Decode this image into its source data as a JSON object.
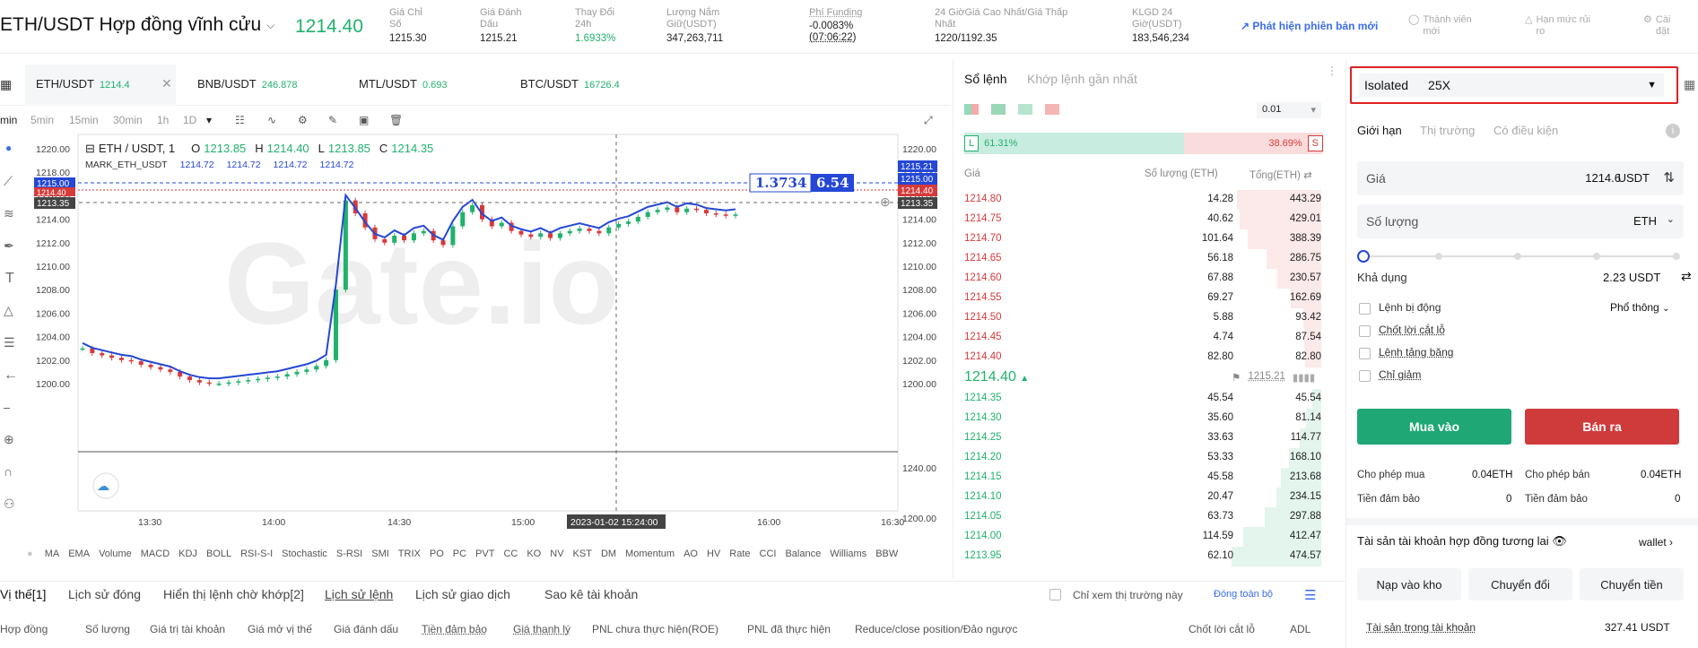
{
  "header": {
    "pair": "ETH/USDT Hợp đồng vĩnh cửu",
    "last_price": "1214.40",
    "stats": [
      {
        "label1": "Giá Chỉ",
        "label2": "Số",
        "value": "1215.30"
      },
      {
        "label1": "Giá Đánh",
        "label2": "Dấu",
        "value": "1215.21"
      },
      {
        "label1": "Thay Đổi",
        "label2": "24h",
        "value": "1.6933%"
      },
      {
        "label1": "Lượng Nắm",
        "label2": "Giữ(USDT)",
        "value": "347,263,711"
      },
      {
        "label1": "Phí Funding",
        "label2": "",
        "value": "-0.0083%",
        "value2": "(07:06:22)"
      },
      {
        "label1": "24 GiờGiá Cao Nhất/Giá Thấp",
        "label2": "Nhất",
        "value": "1220/1192.35"
      },
      {
        "label1": "KLGD 24",
        "label2": "Giờ(USDT)",
        "value": "183,546,234"
      }
    ],
    "new_version": "Phát hiện phiên bản mới",
    "member": [
      "Thành viên",
      "mới"
    ],
    "limit": [
      "Hạn mức rủi",
      "ro"
    ],
    "settings": [
      "Cài",
      "đặt"
    ]
  },
  "market_tabs": [
    {
      "name": "ETH/USDT",
      "price": "1214.4"
    },
    {
      "name": "BNB/USDT",
      "price": "246.878"
    },
    {
      "name": "MTL/USDT",
      "price": "0.693"
    },
    {
      "name": "BTC/USDT",
      "price": "16726.4"
    }
  ],
  "timeframes": [
    "min",
    "5min",
    "15min",
    "30min",
    "1h",
    "1D"
  ],
  "chart": {
    "legend_title": "ETH / USDT, 1",
    "o_label": "O",
    "o": "1213.85",
    "h_label": "H",
    "h": "1214.40",
    "l_label": "L",
    "l": "1213.85",
    "c_label": "C",
    "c": "1214.35",
    "mark_label": "MARK_ETH_USDT",
    "mark_vals": [
      "1214.72",
      "1214.72",
      "1214.72",
      "1214.72"
    ],
    "y_ticks": [
      "1220.00",
      "1218.00",
      "1216.00",
      "1214.00",
      "1212.00",
      "1210.00",
      "1208.00",
      "1206.00",
      "1204.00",
      "1202.00",
      "1200.00"
    ],
    "y_ticks_lower": [
      "1240.00",
      "1200.00"
    ],
    "x_ticks": [
      "13:30",
      "14:00",
      "14:30",
      "15:00",
      "16:00",
      "16:30"
    ],
    "cursor_time": "2023-01-02 15:24:00",
    "tags_right": [
      "1215.21",
      "1215.00",
      "1214.40",
      "1213.35"
    ],
    "tags_left": [
      "1215.00",
      "1214.40",
      "1213.35"
    ],
    "ratio_a": "1.3734",
    "ratio_b": "6.54",
    "watermark": "Gate.io"
  },
  "indicators": [
    "MA",
    "EMA",
    "Volume",
    "MACD",
    "KDJ",
    "BOLL",
    "RSI-S-I",
    "Stochastic",
    "S-RSI",
    "SMI",
    "TRIX",
    "PO",
    "PC",
    "PVT",
    "CC",
    "KO",
    "NV",
    "KST",
    "DM",
    "Momentum",
    "AO",
    "HV",
    "Rate",
    "CCI",
    "Balance",
    "Williams",
    "BBW"
  ],
  "bottom": {
    "tabs": [
      "Vị thế[1]",
      "Lịch sử đóng",
      "Hiển thị lệnh chờ khớp[2]",
      "Lịch sử lệnh",
      "Lịch sử giao dịch",
      "Sao kê tài khoản"
    ],
    "only_market": "Chỉ xem thị trường này",
    "close_all": "Đóng toàn bộ",
    "columns": [
      "Hợp đồng",
      "Số lượng",
      "Giá trị tài khoản",
      "Giá mở vị thế",
      "Giá đánh dấu",
      "Tiền đảm bảo",
      "Giá thanh lý",
      "PNL chưa thực hiện(ROE)",
      "PNL đã thực hiện",
      "Reduce/close position/Đảo ngược",
      "Chốt lời cắt lỗ",
      "ADL"
    ]
  },
  "orderbook": {
    "tab1": "Sổ lệnh",
    "tab2": "Khớp lệnh gần nhất",
    "precision": "0.01",
    "long_label": "L",
    "long_pct": "61.31%",
    "short_pct": "38.69%",
    "short_label": "S",
    "col_price": "Giá",
    "col_qty": "Số lượng (ETH)",
    "col_total": "Tổng(ETH)",
    "asks": [
      {
        "p": "1214.80",
        "q": "14.28",
        "t": "443.29",
        "depth": 0.94
      },
      {
        "p": "1214.75",
        "q": "40.62",
        "t": "429.01",
        "depth": 0.91
      },
      {
        "p": "1214.70",
        "q": "101.64",
        "t": "388.39",
        "depth": 0.82
      },
      {
        "p": "1214.65",
        "q": "56.18",
        "t": "286.75",
        "depth": 0.61
      },
      {
        "p": "1214.60",
        "q": "67.88",
        "t": "230.57",
        "depth": 0.49
      },
      {
        "p": "1214.55",
        "q": "69.27",
        "t": "162.69",
        "depth": 0.34
      },
      {
        "p": "1214.50",
        "q": "5.88",
        "t": "93.42",
        "depth": 0.2
      },
      {
        "p": "1214.45",
        "q": "4.74",
        "t": "87.54",
        "depth": 0.19
      },
      {
        "p": "1214.40",
        "q": "82.80",
        "t": "82.80",
        "depth": 0.18
      }
    ],
    "mid_price": "1214.40",
    "mark_price": "1215.21",
    "bids": [
      {
        "p": "1214.35",
        "q": "45.54",
        "t": "45.54",
        "depth": 0.1
      },
      {
        "p": "1214.30",
        "q": "35.60",
        "t": "81.14",
        "depth": 0.17
      },
      {
        "p": "1214.25",
        "q": "33.63",
        "t": "114.77",
        "depth": 0.24
      },
      {
        "p": "1214.20",
        "q": "53.33",
        "t": "168.10",
        "depth": 0.36
      },
      {
        "p": "1214.15",
        "q": "45.58",
        "t": "213.68",
        "depth": 0.45
      },
      {
        "p": "1214.10",
        "q": "20.47",
        "t": "234.15",
        "depth": 0.5
      },
      {
        "p": "1214.05",
        "q": "63.73",
        "t": "297.88",
        "depth": 0.63
      },
      {
        "p": "1214.00",
        "q": "114.59",
        "t": "412.47",
        "depth": 0.87
      },
      {
        "p": "1213.95",
        "q": "62.10",
        "t": "474.57",
        "depth": 1.0
      }
    ]
  },
  "order": {
    "margin_mode": "Isolated",
    "leverage": "25X",
    "types": [
      "Giới hạn",
      "Thị trường",
      "Có điều kiện"
    ],
    "price_label": "Giá",
    "price_value": "1214.6",
    "price_unit": "USDT",
    "qty_label": "Số lượng",
    "qty_unit": "ETH",
    "available_label": "Khả dụng",
    "available_value": "2.23 USDT",
    "opt1": "Lệnh bị động",
    "mode": "Phổ thông",
    "opt2": "Chốt lời cắt lỗ",
    "opt3": "Lệnh tảng băng",
    "opt4": "Chỉ giảm",
    "buy": "Mua vào",
    "sell": "Bán ra",
    "allow_buy_label": "Cho phép mua",
    "allow_buy": "0.04ETH",
    "allow_sell_label": "Cho phép bán",
    "allow_sell": "0.04ETH",
    "margin_label": "Tiền đảm bảo",
    "margin_buy": "0",
    "margin_sell": "0",
    "assets_title": "Tài sản tài khoản hợp đồng tương lai",
    "wallet": "wallet",
    "btn_deposit": "Nạp vào kho",
    "btn_convert": "Chuyển đổi",
    "btn_transfer": "Chuyển tiền",
    "assets_label": "Tài sản trong tài khoản",
    "assets_value": "327.41 USDT"
  },
  "colors": {
    "green": "#20b26c",
    "red": "#d73a3a",
    "blue": "#2447d6",
    "accent_box": "#e02020"
  }
}
